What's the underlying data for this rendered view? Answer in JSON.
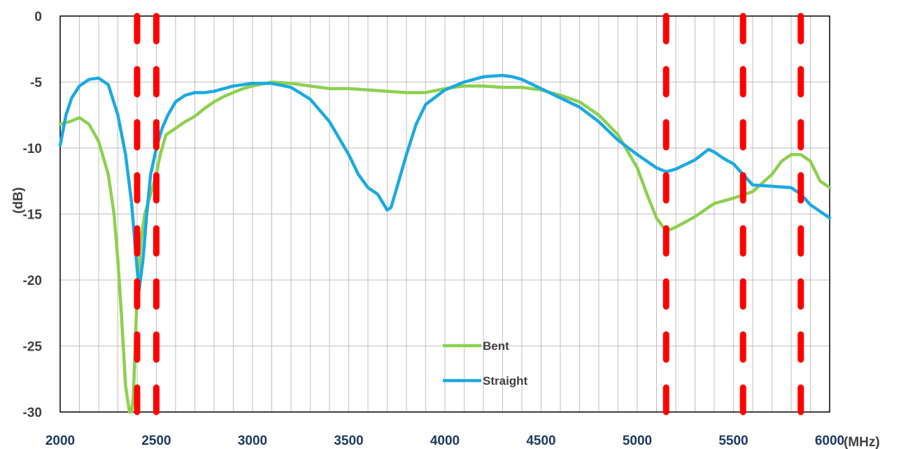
{
  "chart_data": {
    "type": "line",
    "title": "",
    "xlabel": "(MHz)",
    "ylabel": "(dB)",
    "xlim": [
      2000,
      6000
    ],
    "ylim": [
      -30,
      0
    ],
    "xticks": [
      2000,
      2500,
      3000,
      3500,
      4000,
      4500,
      5000,
      5500,
      6000
    ],
    "yticks": [
      0,
      -5,
      -10,
      -15,
      -20,
      -25,
      -30
    ],
    "xtick_labels": [
      "2000",
      "2500",
      "3000",
      "3500",
      "4000",
      "4500",
      "5000",
      "5500",
      "6000"
    ],
    "ytick_labels": [
      "0",
      "-5",
      "-10",
      "-15",
      "-20",
      "-25",
      "-30"
    ],
    "grid": "vertical lines every 100 MHz",
    "legend_position": "bottom-center",
    "series": [
      {
        "name": "Bent",
        "color": "#8dd050",
        "x": [
          2000,
          2050,
          2100,
          2150,
          2200,
          2250,
          2280,
          2300,
          2320,
          2340,
          2360,
          2370,
          2380,
          2390,
          2400,
          2420,
          2440,
          2460,
          2480,
          2500,
          2520,
          2550,
          2600,
          2650,
          2700,
          2750,
          2800,
          2850,
          2900,
          2950,
          3000,
          3100,
          3200,
          3300,
          3400,
          3500,
          3600,
          3700,
          3800,
          3900,
          4000,
          4100,
          4200,
          4300,
          4400,
          4500,
          4600,
          4700,
          4800,
          4900,
          5000,
          5050,
          5100,
          5150,
          5200,
          5300,
          5400,
          5500,
          5600,
          5700,
          5750,
          5800,
          5850,
          5900,
          5950,
          6000
        ],
        "y": [
          -8.2,
          -8.0,
          -7.7,
          -8.2,
          -9.5,
          -12.0,
          -15.0,
          -18.5,
          -23.0,
          -28.0,
          -30.0,
          -30.0,
          -29.0,
          -25.0,
          -21.0,
          -17.0,
          -15.0,
          -14.0,
          -13.0,
          -12.0,
          -10.5,
          -9.0,
          -8.5,
          -8.0,
          -7.6,
          -7.0,
          -6.5,
          -6.1,
          -5.8,
          -5.5,
          -5.3,
          -5.0,
          -5.1,
          -5.3,
          -5.5,
          -5.5,
          -5.6,
          -5.7,
          -5.8,
          -5.8,
          -5.5,
          -5.3,
          -5.3,
          -5.4,
          -5.4,
          -5.6,
          -6.0,
          -6.5,
          -7.5,
          -9.0,
          -11.5,
          -13.5,
          -15.3,
          -16.3,
          -16.0,
          -15.2,
          -14.2,
          -13.8,
          -13.3,
          -12.0,
          -11.0,
          -10.5,
          -10.5,
          -11.0,
          -12.5,
          -13.0
        ]
      },
      {
        "name": "Straight",
        "color": "#1ba9e1",
        "x": [
          2000,
          2030,
          2060,
          2100,
          2150,
          2200,
          2250,
          2300,
          2340,
          2370,
          2390,
          2410,
          2430,
          2450,
          2470,
          2500,
          2530,
          2560,
          2600,
          2650,
          2700,
          2750,
          2800,
          2850,
          2900,
          2950,
          3000,
          3100,
          3200,
          3300,
          3400,
          3500,
          3550,
          3600,
          3650,
          3700,
          3720,
          3750,
          3800,
          3850,
          3900,
          4000,
          4100,
          4200,
          4300,
          4350,
          4400,
          4500,
          4600,
          4700,
          4800,
          4900,
          5000,
          5050,
          5100,
          5150,
          5200,
          5300,
          5370,
          5400,
          5450,
          5500,
          5600,
          5700,
          5800,
          5850,
          5900,
          5950,
          6000
        ],
        "y": [
          -9.8,
          -7.5,
          -6.2,
          -5.3,
          -4.8,
          -4.7,
          -5.2,
          -7.5,
          -10.5,
          -14.0,
          -17.5,
          -20.8,
          -18.5,
          -15.0,
          -12.0,
          -10.0,
          -8.5,
          -7.5,
          -6.5,
          -6.0,
          -5.8,
          -5.8,
          -5.7,
          -5.5,
          -5.3,
          -5.2,
          -5.1,
          -5.1,
          -5.4,
          -6.3,
          -8.0,
          -10.5,
          -12.0,
          -13.0,
          -13.5,
          -14.7,
          -14.5,
          -13.0,
          -10.5,
          -8.2,
          -6.7,
          -5.6,
          -5.0,
          -4.6,
          -4.5,
          -4.6,
          -4.8,
          -5.5,
          -6.2,
          -6.9,
          -8.0,
          -9.4,
          -10.5,
          -11.0,
          -11.5,
          -11.8,
          -11.6,
          -10.9,
          -10.1,
          -10.3,
          -10.8,
          -11.2,
          -12.8,
          -12.9,
          -13.0,
          -13.5,
          -14.3,
          -14.8,
          -15.3
        ]
      }
    ],
    "band_markers": {
      "color": "#ff0000",
      "x": [
        2400,
        2500,
        5150,
        5550,
        5850
      ]
    }
  },
  "legend": {
    "position": "bottom-center",
    "items": [
      "Bent",
      "Straight"
    ]
  }
}
